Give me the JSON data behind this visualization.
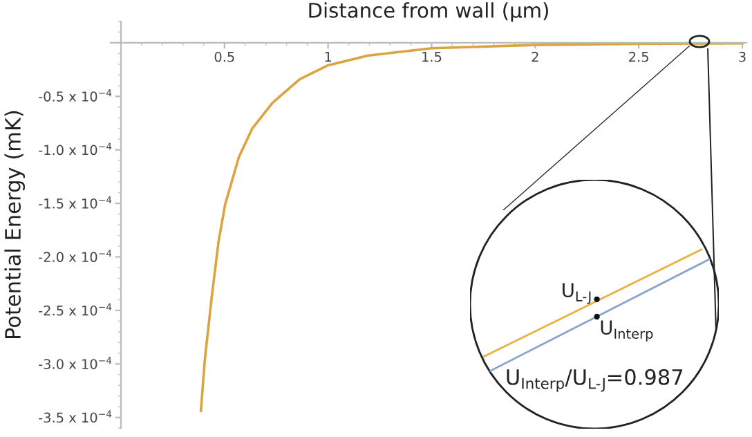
{
  "chart_data": {
    "type": "line",
    "xlabel": "Distance from wall (μm)",
    "ylabel": "Potential Energy (mK)",
    "x": [
      0.386,
      0.405,
      0.438,
      0.471,
      0.503,
      0.569,
      0.634,
      0.732,
      0.863,
      1.0,
      1.19,
      1.5,
      2.0,
      2.5,
      3.0
    ],
    "series": [
      {
        "color": "#dba441",
        "values": [
          -0.000344,
          -0.000296,
          -0.000238,
          -0.000186,
          -0.000151,
          -0.000107,
          -8e-05,
          -5.6e-05,
          -3.4e-05,
          -2.1e-05,
          -1.2e-05,
          -5e-06,
          -2e-06,
          -1e-06,
          -5e-07
        ]
      }
    ],
    "xlim": [
      -0.05,
      3.02
    ],
    "ylim": [
      -0.00036,
      2e-05
    ],
    "xticks": [
      0.5,
      1,
      1.5,
      2,
      2.5,
      3
    ],
    "yticks": [
      {
        "value": -5e-05,
        "label": "-0.5 x 10$^{−4}$"
      },
      {
        "value": -0.0001,
        "label": "-1.0 x 10$^{−4}$"
      },
      {
        "value": -0.00015,
        "label": "-1.5 x 10$^{−4}$"
      },
      {
        "value": -0.0002,
        "label": "-2.0 x 10$^{−4}$"
      },
      {
        "value": -0.00025,
        "label": "-2.5 x 10$^{−4}$"
      },
      {
        "value": -0.0003,
        "label": "-3.0 x 10$^{−4}$"
      },
      {
        "value": -0.00035,
        "label": "-3.5 x 10$^{−4}$"
      }
    ],
    "annotations": [
      "U$_{L-J}$",
      "U$_{Interp}$",
      "U$_{Interp}$/U$_{L-J}$=0.987"
    ],
    "grid": false,
    "legend": false,
    "marker": "none",
    "line_style": "solid"
  }
}
